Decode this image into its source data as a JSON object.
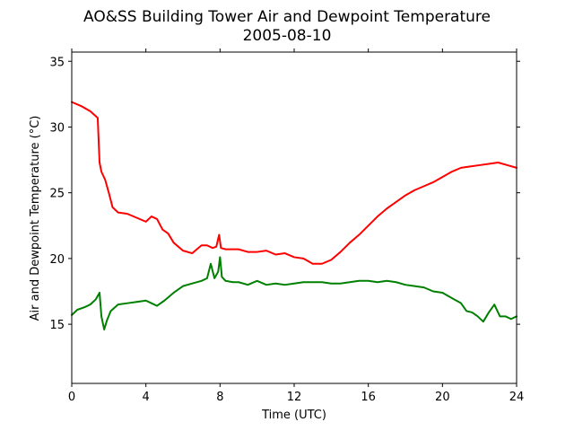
{
  "chart_data": {
    "type": "line",
    "title": "AO&SS Building Tower Air and Dewpoint Temperature",
    "subtitle": "2005-08-10",
    "xlabel": "Time (UTC)",
    "ylabel": "Air and Dewpoint Temperature (°C)",
    "xlim": [
      0,
      24
    ],
    "ylim": [
      10.5,
      35.7
    ],
    "xticks": [
      0,
      4,
      8,
      12,
      16,
      20,
      24
    ],
    "yticks": [
      15,
      20,
      25,
      30,
      35
    ],
    "grid": false,
    "legend": "none",
    "series": [
      {
        "color": "#ff0000",
        "x": [
          0,
          0.5,
          1.0,
          1.4,
          1.5,
          1.6,
          1.8,
          2.0,
          2.2,
          2.5,
          3.0,
          3.5,
          4.0,
          4.3,
          4.6,
          4.9,
          5.2,
          5.5,
          6.0,
          6.5,
          7.0,
          7.3,
          7.6,
          7.8,
          7.95,
          8.05,
          8.3,
          8.6,
          9.0,
          9.5,
          10.0,
          10.5,
          11.0,
          11.5,
          12.0,
          12.5,
          13.0,
          13.5,
          14.0,
          14.5,
          15.0,
          15.5,
          16.0,
          16.5,
          17.0,
          17.5,
          18.0,
          18.5,
          19.0,
          19.5,
          20.0,
          20.5,
          21.0,
          21.5,
          22.0,
          22.5,
          23.0,
          23.5,
          24.0
        ],
        "y": [
          31.9,
          31.6,
          31.2,
          30.7,
          27.3,
          26.6,
          26.0,
          25.0,
          23.9,
          23.5,
          23.4,
          23.1,
          22.8,
          23.2,
          23.0,
          22.2,
          21.9,
          21.2,
          20.6,
          20.4,
          21.0,
          21.0,
          20.8,
          20.9,
          21.8,
          20.8,
          20.7,
          20.7,
          20.7,
          20.5,
          20.5,
          20.6,
          20.3,
          20.4,
          20.1,
          20.0,
          19.6,
          19.6,
          19.9,
          20.5,
          21.2,
          21.8,
          22.5,
          23.2,
          23.8,
          24.3,
          24.8,
          25.2,
          25.5,
          25.8,
          26.2,
          26.6,
          26.9,
          27.0,
          27.1,
          27.2,
          27.3,
          27.1,
          26.9
        ]
      },
      {
        "color": "#008000",
        "x": [
          0,
          0.3,
          0.7,
          1.0,
          1.3,
          1.5,
          1.6,
          1.75,
          1.9,
          2.1,
          2.5,
          3.0,
          3.5,
          4.0,
          4.3,
          4.6,
          5.0,
          5.5,
          6.0,
          6.5,
          7.0,
          7.3,
          7.5,
          7.7,
          7.9,
          8.0,
          8.1,
          8.3,
          8.7,
          9.0,
          9.5,
          10.0,
          10.5,
          11.0,
          11.5,
          12.0,
          12.5,
          13.0,
          13.5,
          14.0,
          14.5,
          15.0,
          15.5,
          16.0,
          16.5,
          17.0,
          17.5,
          18.0,
          18.5,
          19.0,
          19.5,
          20.0,
          20.5,
          21.0,
          21.3,
          21.6,
          21.9,
          22.2,
          22.5,
          22.8,
          23.1,
          23.4,
          23.7,
          24.0
        ],
        "y": [
          15.7,
          16.1,
          16.3,
          16.5,
          16.9,
          17.4,
          15.6,
          14.6,
          15.3,
          16.0,
          16.5,
          16.6,
          16.7,
          16.8,
          16.6,
          16.4,
          16.8,
          17.4,
          17.9,
          18.1,
          18.3,
          18.5,
          19.6,
          18.5,
          19.0,
          20.1,
          18.6,
          18.3,
          18.2,
          18.2,
          18.0,
          18.3,
          18.0,
          18.1,
          18.0,
          18.1,
          18.2,
          18.2,
          18.2,
          18.1,
          18.1,
          18.2,
          18.3,
          18.3,
          18.2,
          18.3,
          18.2,
          18.0,
          17.9,
          17.8,
          17.5,
          17.4,
          17.0,
          16.6,
          16.0,
          15.9,
          15.6,
          15.2,
          15.9,
          16.5,
          15.6,
          15.6,
          15.4,
          15.6
        ]
      }
    ]
  }
}
